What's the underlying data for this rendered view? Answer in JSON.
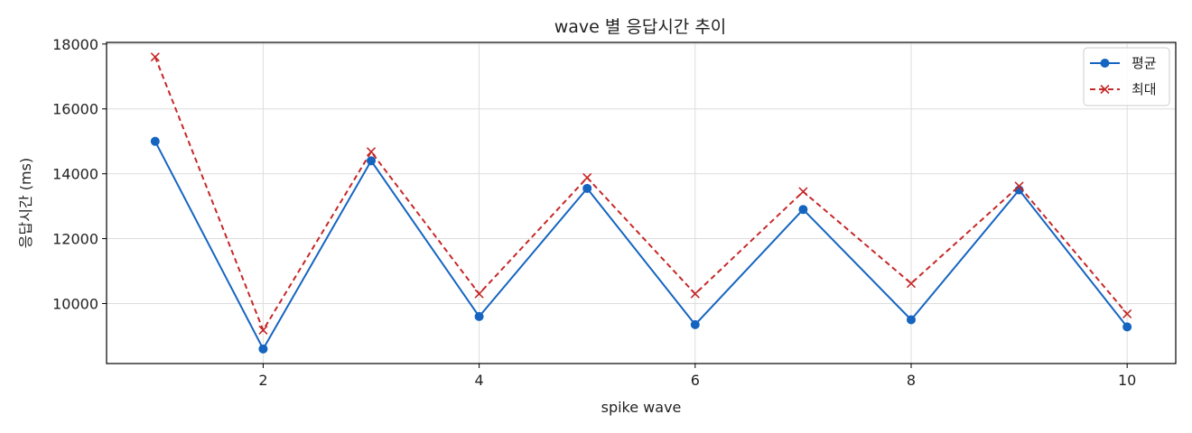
{
  "chart_data": {
    "type": "line",
    "title": "wave 별 응답시간 추이",
    "xlabel": "spike wave",
    "ylabel": "응답시간 (ms)",
    "x": [
      1,
      2,
      3,
      4,
      5,
      6,
      7,
      8,
      9,
      10
    ],
    "xlim": [
      0.55,
      10.45
    ],
    "ylim": [
      8150,
      18050
    ],
    "x_ticks": [
      2,
      4,
      6,
      8,
      10
    ],
    "y_ticks": [
      10000,
      12000,
      14000,
      16000,
      18000
    ],
    "grid": true,
    "legend_position": "top-right",
    "series": [
      {
        "name": "평균",
        "values": [
          15000,
          8600,
          14400,
          9600,
          13550,
          9350,
          12900,
          9500,
          13500,
          9280
        ],
        "color": "#1565c0",
        "line_style": "solid",
        "marker": "circle"
      },
      {
        "name": "최대",
        "values": [
          17600,
          9180,
          14680,
          10300,
          13880,
          10300,
          13450,
          10620,
          13620,
          9680
        ],
        "color": "#c62828",
        "line_style": "dashed",
        "marker": "x"
      }
    ]
  }
}
